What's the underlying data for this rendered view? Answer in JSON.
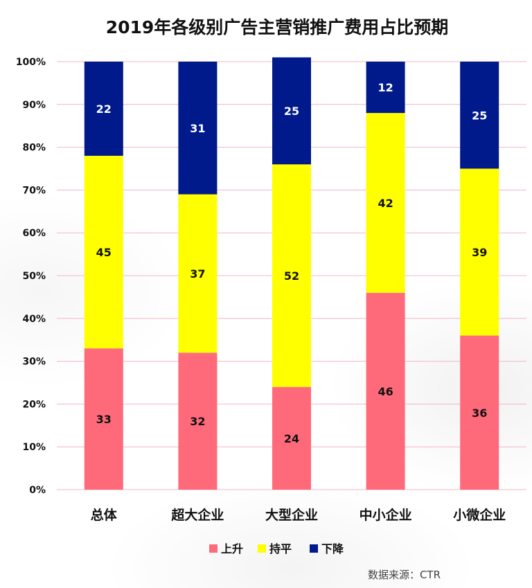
{
  "chart_data": {
    "type": "bar",
    "stacked": true,
    "title": "2019年各级别广告主营销推广费用占比预期",
    "categories": [
      "总体",
      "超大企业",
      "大型企业",
      "中小企业",
      "小微企业"
    ],
    "series": [
      {
        "name": "上升",
        "color": "#FF6A7A",
        "label_color": "#111111",
        "values": [
          33,
          32,
          24,
          46,
          36
        ]
      },
      {
        "name": "持平",
        "color": "#FFFF00",
        "label_color": "#111111",
        "values": [
          45,
          37,
          52,
          42,
          39
        ]
      },
      {
        "name": "下降",
        "color": "#001A8C",
        "label_color": "#FFFFFF",
        "values": [
          22,
          31,
          25,
          12,
          25
        ]
      }
    ],
    "ylim": [
      0,
      100
    ],
    "yticks": [
      "0%",
      "10%",
      "20%",
      "30%",
      "40%",
      "50%",
      "60%",
      "70%",
      "80%",
      "90%",
      "100%"
    ],
    "grid": true,
    "grid_color": "#F4B6BF",
    "legend_position": "bottom",
    "xlabel": "",
    "ylabel": ""
  },
  "source_note": "数据来源：CTR"
}
